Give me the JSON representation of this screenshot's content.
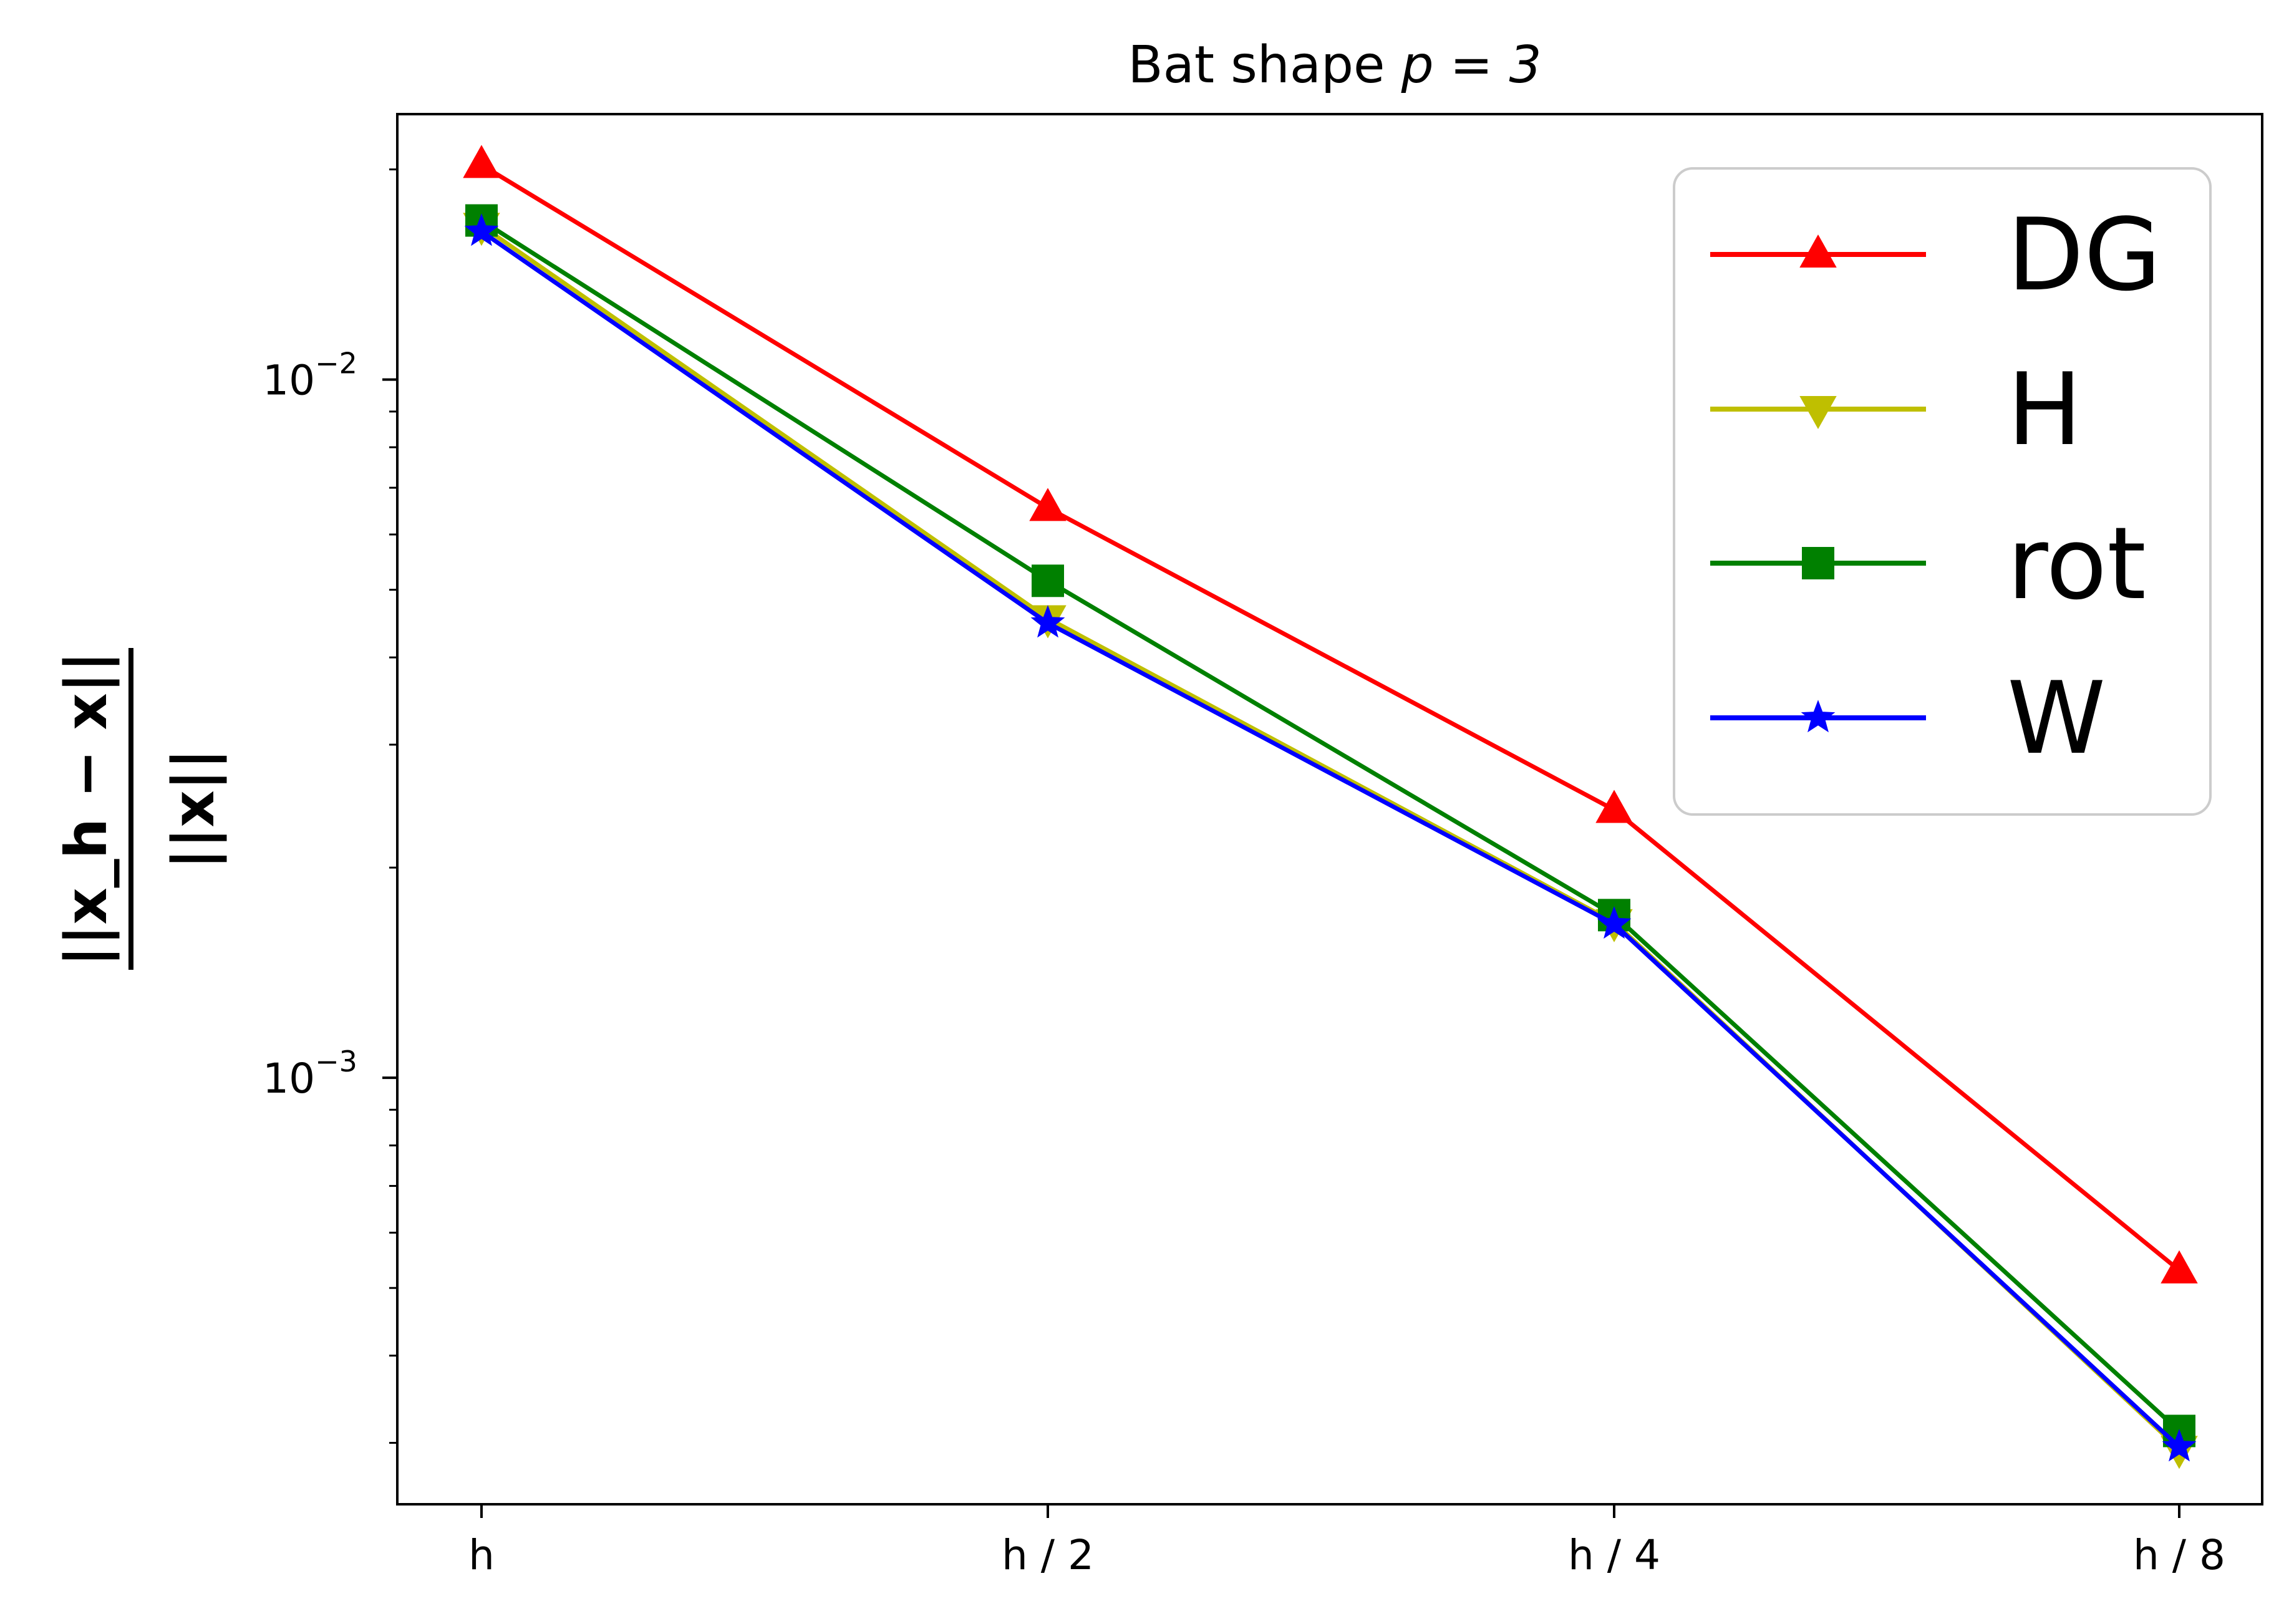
{
  "chart_data": {
    "type": "line",
    "title": "Bat shape p = 3",
    "title_text": "Bat shape ",
    "title_math": "p = 3",
    "xlabel": "",
    "ylabel": "||x_h − x|| / ||x||",
    "ylabel_numerator": "||x_h − x||",
    "ylabel_denominator": "||x||",
    "categories": [
      "h",
      "h / 2",
      "h / 4",
      "h / 8"
    ],
    "y_scale": "log",
    "ylim": [
      0.000245,
      0.024
    ],
    "y_major_ticks": [
      {
        "value": 0.01,
        "base": "10",
        "exp": "−2"
      },
      {
        "value": 0.001,
        "base": "10",
        "exp": "−3"
      }
    ],
    "grid": false,
    "legend_position": "top-right",
    "series": [
      {
        "name": "DG",
        "color": "#ff0000",
        "marker": "triangle-up",
        "values": [
          0.0203,
          0.00655,
          0.00242,
          0.00053
        ]
      },
      {
        "name": "H",
        "color": "#bfbf00",
        "marker": "triangle-down",
        "values": [
          0.0166,
          0.00455,
          0.00167,
          0.000294
        ]
      },
      {
        "name": "rot",
        "color": "#008000",
        "marker": "square",
        "values": [
          0.0169,
          0.00515,
          0.00171,
          0.000312
        ]
      },
      {
        "name": "W",
        "color": "#0000ff",
        "marker": "star",
        "values": [
          0.0163,
          0.00448,
          0.00166,
          0.000296
        ]
      }
    ]
  }
}
